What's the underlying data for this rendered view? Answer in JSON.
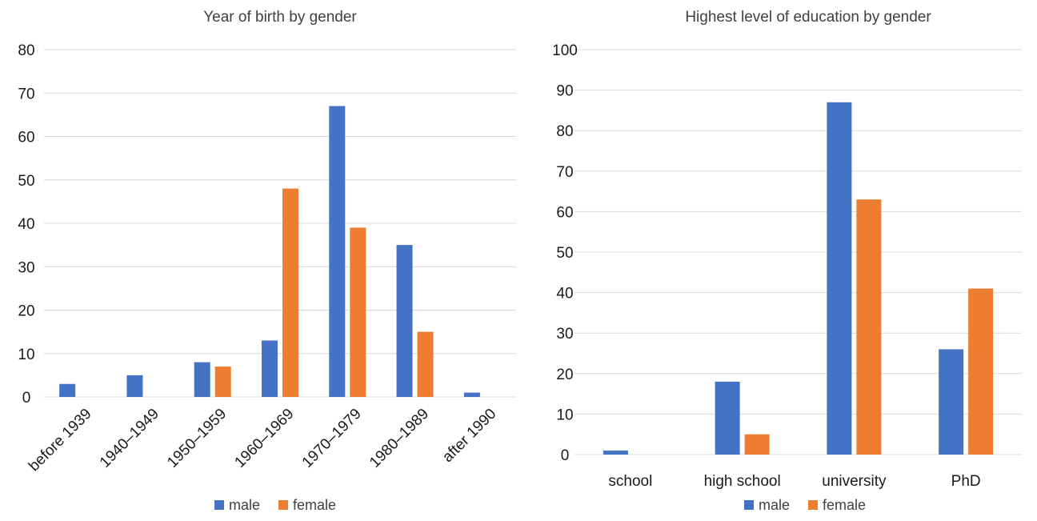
{
  "chart_data": [
    {
      "type": "bar",
      "title": "Year of birth by gender",
      "categories": [
        "before 1939",
        "1940–1949",
        "1950–1959",
        "1960–1969",
        "1970–1979",
        "1980–1989",
        "after 1990"
      ],
      "series": [
        {
          "name": "male",
          "color": "#4472C4",
          "values": [
            3,
            5,
            8,
            13,
            67,
            35,
            1
          ]
        },
        {
          "name": "female",
          "color": "#ED7D31",
          "values": [
            0,
            0,
            7,
            48,
            39,
            15,
            0
          ]
        }
      ],
      "ylim": [
        0,
        80
      ],
      "yticks": [
        0,
        10,
        20,
        30,
        40,
        50,
        60,
        70,
        80
      ],
      "xlabel": "",
      "ylabel": "",
      "grid": true,
      "legend": "bottom"
    },
    {
      "type": "bar",
      "title": "Highest level of education by gender",
      "categories": [
        "school",
        "high school",
        "university",
        "PhD"
      ],
      "series": [
        {
          "name": "male",
          "color": "#4472C4",
          "values": [
            1,
            18,
            87,
            26
          ]
        },
        {
          "name": "female",
          "color": "#ED7D31",
          "values": [
            0,
            5,
            63,
            41
          ]
        }
      ],
      "ylim": [
        0,
        100
      ],
      "yticks": [
        0,
        10,
        20,
        30,
        40,
        50,
        60,
        70,
        80,
        90,
        100
      ],
      "xlabel": "",
      "ylabel": "",
      "grid": true,
      "legend": "bottom"
    }
  ]
}
